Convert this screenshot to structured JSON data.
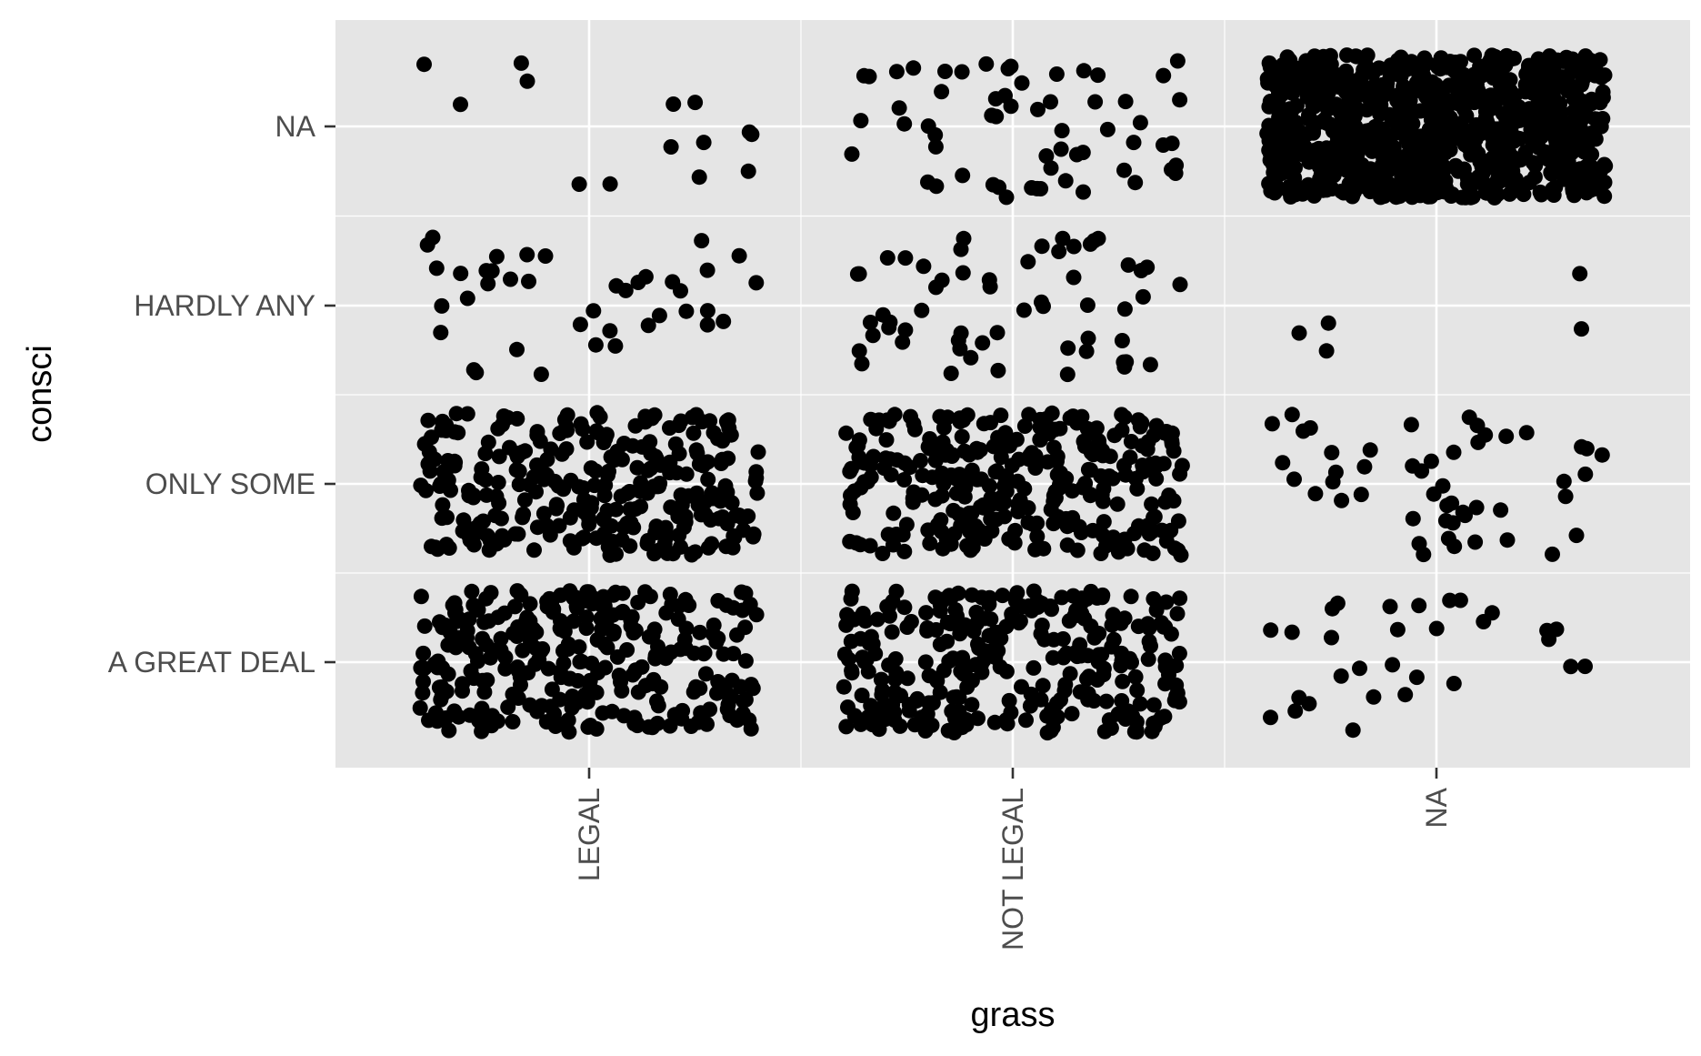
{
  "chart_data": {
    "type": "scatter",
    "subtype": "categorical-jitter",
    "title": "",
    "xlabel": "grass",
    "ylabel": "consci",
    "x_categories": [
      "LEGAL",
      "NOT LEGAL",
      "NA"
    ],
    "y_categories": [
      "A GREAT DEAL",
      "ONLY SOME",
      "HARDLY ANY",
      "NA"
    ],
    "grid": true,
    "legend": "none",
    "point_color": "#000000",
    "background_color": "#e5e5e5",
    "grid_color": "#ffffff",
    "jitter": {
      "x": 0.4,
      "y": 0.4
    },
    "groups": [
      {
        "x": "LEGAL",
        "y": "A GREAT DEAL",
        "count": 300
      },
      {
        "x": "LEGAL",
        "y": "ONLY SOME",
        "count": 300
      },
      {
        "x": "LEGAL",
        "y": "HARDLY ANY",
        "count": 40
      },
      {
        "x": "LEGAL",
        "y": "NA",
        "count": 14
      },
      {
        "x": "NOT LEGAL",
        "y": "A GREAT DEAL",
        "count": 300
      },
      {
        "x": "NOT LEGAL",
        "y": "ONLY SOME",
        "count": 310
      },
      {
        "x": "NOT LEGAL",
        "y": "HARDLY ANY",
        "count": 58
      },
      {
        "x": "NOT LEGAL",
        "y": "NA",
        "count": 60
      },
      {
        "x": "NA",
        "y": "A GREAT DEAL",
        "count": 30
      },
      {
        "x": "NA",
        "y": "ONLY SOME",
        "count": 50
      },
      {
        "x": "NA",
        "y": "HARDLY ANY",
        "count": 5
      },
      {
        "x": "NA",
        "y": "NA",
        "count": 900
      }
    ]
  }
}
